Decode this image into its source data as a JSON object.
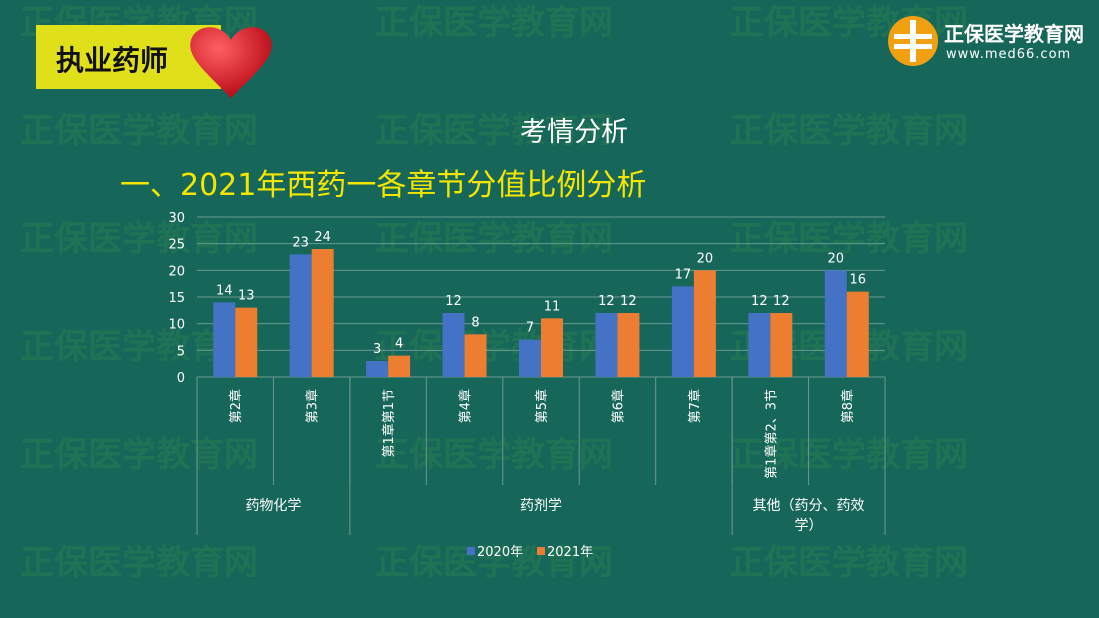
{
  "header": {
    "badge": "执业药师",
    "logo_name": "正保医学教育网",
    "logo_url": "www.med66.com",
    "subtitle": "考情分析",
    "title": "一、2021年西药一各章节分值比例分析",
    "watermark": "正保医学教育网 www.med66.com"
  },
  "chart_data": {
    "type": "bar",
    "categories": [
      "第2章",
      "第3章",
      "第1章第1节",
      "第4章",
      "第5章",
      "第6章",
      "第7章",
      "第1章第2、3节",
      "第8章"
    ],
    "groups": [
      {
        "label": "药物化学",
        "span": 2
      },
      {
        "label": "药剂学",
        "span": 5
      },
      {
        "label": "其他（药分、药效学）",
        "span": 2
      }
    ],
    "series": [
      {
        "name": "2020年",
        "values": [
          14,
          23,
          3,
          12,
          7,
          12,
          17,
          12,
          20
        ],
        "color": "#4472c4"
      },
      {
        "name": "2021年",
        "values": [
          13,
          24,
          4,
          8,
          11,
          12,
          20,
          12,
          16
        ],
        "color": "#ed7d31"
      }
    ],
    "ylim": [
      0,
      30
    ],
    "yticks": [
      0,
      5,
      10,
      15,
      20,
      25,
      30
    ],
    "grid": true,
    "legend": "bottom"
  }
}
